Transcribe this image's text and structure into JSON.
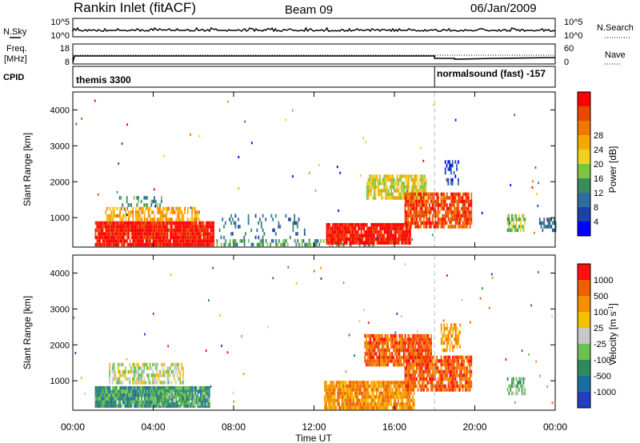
{
  "header": {
    "station": "Rankin Inlet (fitACF)",
    "beam": "Beam 09",
    "date": "06/Jan/2009"
  },
  "noise_panel": {
    "left_label": "N.Sky",
    "left_ticks": [
      "10^5",
      "10^0"
    ],
    "right_ticks": [
      "10^5",
      "10^0"
    ],
    "right_label": "N.Search"
  },
  "freq_panel": {
    "left_label_1": "Freq.",
    "left_label_2": "[MHz]",
    "left_ticks": [
      "18",
      "8"
    ],
    "right_ticks": [
      "60",
      "0"
    ],
    "right_label": "Nave"
  },
  "cpid_panel": {
    "label": "CPID",
    "program_1": "themis 3300",
    "program_2": "normalsound (fast) -157",
    "switch_time": "18:00"
  },
  "chart_data": [
    {
      "type": "heatmap",
      "name": "power",
      "ylabel": "Slant Range [km]",
      "xlabel": "",
      "ylim": [
        180,
        4500
      ],
      "yticks": [
        "1000",
        "2000",
        "3000",
        "4000"
      ],
      "x_ticks": [
        "00:00",
        "04:00",
        "08:00",
        "12:00",
        "16:00",
        "20:00",
        "00:00"
      ],
      "xlim_hours": [
        0,
        24
      ],
      "colorbar": {
        "label": "Power [dB]",
        "ticks": [
          "4",
          "8",
          "12",
          "16",
          "20",
          "24",
          "28"
        ],
        "colors": [
          "#0000ff",
          "#1b42a8",
          "#2e6e9e",
          "#3a8c5e",
          "#7cc444",
          "#f0d020",
          "#f5a800",
          "#f07800",
          "#e84800",
          "#ff0000"
        ]
      },
      "regions": [
        {
          "t0": 1.1,
          "t1": 7.0,
          "r0": 250,
          "r1": 900,
          "level": 9,
          "density": 0.95
        },
        {
          "t0": 1.6,
          "t1": 6.3,
          "r0": 900,
          "r1": 1300,
          "level": 6,
          "density": 0.6
        },
        {
          "t0": 2.3,
          "t1": 4.4,
          "r0": 1300,
          "r1": 1600,
          "level": 3,
          "density": 0.35
        },
        {
          "t0": 7.0,
          "t1": 15.0,
          "r0": 250,
          "r1": 400,
          "level": 3,
          "density": 0.5
        },
        {
          "t0": 7.2,
          "t1": 11.5,
          "r0": 400,
          "r1": 1100,
          "level": 2,
          "density": 0.15
        },
        {
          "t0": 12.6,
          "t1": 16.8,
          "r0": 250,
          "r1": 850,
          "level": 9,
          "density": 0.95
        },
        {
          "t0": 14.6,
          "t1": 17.6,
          "r0": 1500,
          "r1": 2200,
          "level": 5,
          "density": 0.75
        },
        {
          "t0": 16.5,
          "t1": 19.8,
          "r0": 700,
          "r1": 1700,
          "level": 8,
          "density": 0.85
        },
        {
          "t0": 18.5,
          "t1": 19.2,
          "r0": 1900,
          "r1": 2600,
          "level": 1,
          "density": 0.5
        },
        {
          "t0": 21.6,
          "t1": 22.5,
          "r0": 600,
          "r1": 1100,
          "level": 4,
          "density": 0.6
        },
        {
          "t0": 23.2,
          "t1": 24.0,
          "r0": 600,
          "r1": 1000,
          "level": 2,
          "density": 0.5
        }
      ]
    },
    {
      "type": "heatmap",
      "name": "velocity",
      "ylabel": "Slant Range [km]",
      "xlabel": "Time UT",
      "ylim": [
        180,
        4500
      ],
      "yticks": [
        "1000",
        "2000",
        "3000",
        "4000"
      ],
      "x_ticks": [
        "00:00",
        "04:00",
        "08:00",
        "12:00",
        "16:00",
        "20:00",
        "00:00"
      ],
      "xlim_hours": [
        0,
        24
      ],
      "colorbar": {
        "label": "Velocity [m s^-1]",
        "ticks": [
          "1000",
          "500",
          "100",
          "25",
          "-25",
          "-100",
          "-500",
          "-1000"
        ],
        "colors": [
          "#2040c0",
          "#1a6ea0",
          "#2e8c5a",
          "#6cc050",
          "#c8c8c8",
          "#f5c000",
          "#f59000",
          "#f06000",
          "#ff1010"
        ]
      },
      "regions": [
        {
          "t0": 1.1,
          "t1": 6.8,
          "r0": 250,
          "r1": 850,
          "level": 2,
          "density": 0.95
        },
        {
          "t0": 1.8,
          "t1": 5.5,
          "r0": 900,
          "r1": 1500,
          "level": 4,
          "density": 0.6
        },
        {
          "t0": 4.2,
          "t1": 6.8,
          "r0": 300,
          "r1": 700,
          "level": 3,
          "density": 0.4
        },
        {
          "t0": 12.5,
          "t1": 17.0,
          "r0": 250,
          "r1": 1000,
          "level": 6,
          "density": 0.9
        },
        {
          "t0": 14.5,
          "t1": 17.8,
          "r0": 1400,
          "r1": 2300,
          "level": 7,
          "density": 0.9
        },
        {
          "t0": 16.5,
          "t1": 19.8,
          "r0": 700,
          "r1": 1700,
          "level": 7,
          "density": 0.85
        },
        {
          "t0": 18.3,
          "t1": 19.3,
          "r0": 1800,
          "r1": 2600,
          "level": 6,
          "density": 0.5
        },
        {
          "t0": 21.6,
          "t1": 22.5,
          "r0": 600,
          "r1": 1100,
          "level": 3,
          "density": 0.6
        }
      ]
    }
  ]
}
